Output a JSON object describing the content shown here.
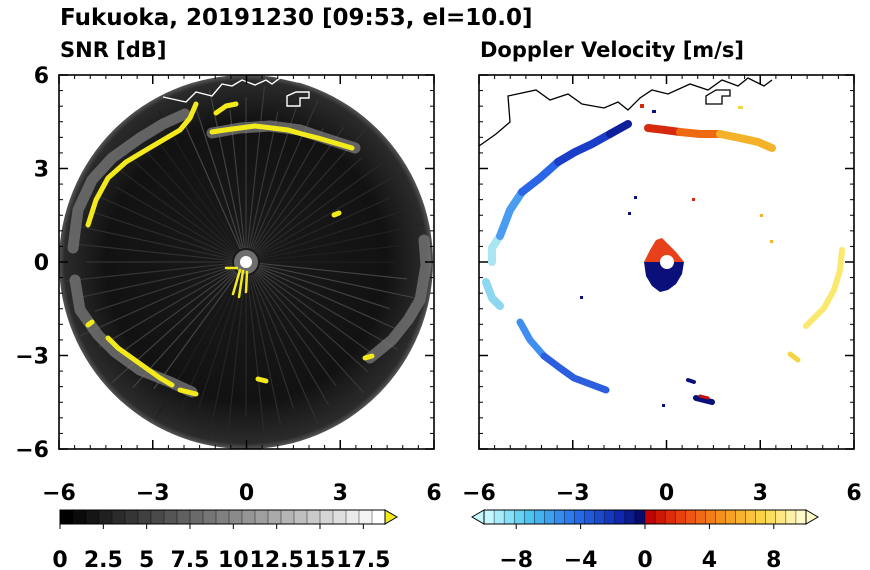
{
  "figure": {
    "title": "Fukuoka, 20191230 [09:53, el=10.0]"
  },
  "chart_data": [
    {
      "type": "heatmap",
      "title": "SNR [dB]",
      "xlim": [
        -6,
        6
      ],
      "ylim": [
        -6,
        6
      ],
      "x_ticks": [
        -6,
        -3,
        0,
        3,
        6
      ],
      "y_ticks": [
        -6,
        -3,
        0,
        3,
        6
      ],
      "x_tick_labels": [
        "−6",
        "−3",
        "0",
        "3",
        "6"
      ],
      "y_tick_labels": [
        "−6",
        "−3",
        "0",
        "3",
        "6"
      ],
      "colorbar": {
        "range": [
          0,
          18.75
        ],
        "levels": 25,
        "extend": "max",
        "colors_from_to": [
          "#000000",
          "#ffffff"
        ],
        "tick_labels": [
          "0",
          "2.5",
          "5",
          "7.5",
          "10",
          "12.5",
          "15",
          "17.5"
        ]
      },
      "echo_band": [
        {
          "x": -3.6,
          "y": 3.0,
          "value": 19
        },
        {
          "x": -2.4,
          "y": 3.9,
          "value": 19
        },
        {
          "x": -1.4,
          "y": 4.5,
          "value": 19
        },
        {
          "x": -0.8,
          "y": 4.3,
          "value": 19
        },
        {
          "x": 1.0,
          "y": 4.2,
          "value": 19
        },
        {
          "x": 2.5,
          "y": 4.0,
          "value": 19
        },
        {
          "x": 3.6,
          "y": 3.6,
          "value": 19
        },
        {
          "x": -4.8,
          "y": 1.5,
          "value": 19
        },
        {
          "x": -5.3,
          "y": 0.0,
          "value": 10
        },
        {
          "x": -4.6,
          "y": -2.5,
          "value": 19
        },
        {
          "x": -3.0,
          "y": -3.7,
          "value": 19
        },
        {
          "x": -1.8,
          "y": -4.3,
          "value": 19
        },
        {
          "x": 0.6,
          "y": -3.8,
          "value": 19
        },
        {
          "x": 5.3,
          "y": 0.3,
          "value": 11
        },
        {
          "x": 4.9,
          "y": -1.2,
          "value": 12
        },
        {
          "x": 4.1,
          "y": -3.0,
          "value": 19
        }
      ],
      "masked_radius_km": 0.2
    },
    {
      "type": "heatmap",
      "title": "Doppler Velocity [m/s]",
      "xlim": [
        -6,
        6
      ],
      "ylim": [
        -6,
        6
      ],
      "x_ticks": [
        -6,
        -3,
        0,
        3,
        6
      ],
      "y_ticks": [
        -6,
        -3,
        0,
        3,
        6
      ],
      "x_tick_labels": [
        "−6",
        "−3",
        "0",
        "3",
        "6"
      ],
      "y_tick_labels": [
        "−6",
        "−3",
        "0",
        "3",
        "6"
      ],
      "colorbar": {
        "range": [
          -10,
          10
        ],
        "levels": 32,
        "extend": "both",
        "tick_values": [
          -8,
          -4,
          0,
          4,
          8
        ],
        "tick_labels": [
          "−8",
          "−4",
          "0",
          "4",
          "8"
        ]
      },
      "echo_band": [
        {
          "x": -5.5,
          "y": 0.2,
          "value": -3
        },
        {
          "x": -5.0,
          "y": 1.5,
          "value": -6
        },
        {
          "x": -4.2,
          "y": 2.4,
          "value": -7
        },
        {
          "x": -3.0,
          "y": 3.2,
          "value": -8
        },
        {
          "x": -2.0,
          "y": 3.8,
          "value": -9
        },
        {
          "x": -0.9,
          "y": 4.4,
          "value": -9
        },
        {
          "x": 0.3,
          "y": 4.3,
          "value": 1
        },
        {
          "x": 1.5,
          "y": 4.2,
          "value": 3
        },
        {
          "x": 2.5,
          "y": 4.1,
          "value": 5
        },
        {
          "x": 3.3,
          "y": 3.8,
          "value": 6
        },
        {
          "x": 5.5,
          "y": 0.4,
          "value": 9
        },
        {
          "x": 5.0,
          "y": -1.4,
          "value": 8
        },
        {
          "x": 4.0,
          "y": -3.0,
          "value": 8
        },
        {
          "x": -4.8,
          "y": -2.6,
          "value": -6
        },
        {
          "x": -3.6,
          "y": -3.6,
          "value": -7
        },
        {
          "x": 0.6,
          "y": -3.7,
          "value": -10
        },
        {
          "x": 1.2,
          "y": -4.3,
          "value": -10
        }
      ],
      "near_range": {
        "north_value": 2,
        "south_value": -10
      }
    }
  ]
}
